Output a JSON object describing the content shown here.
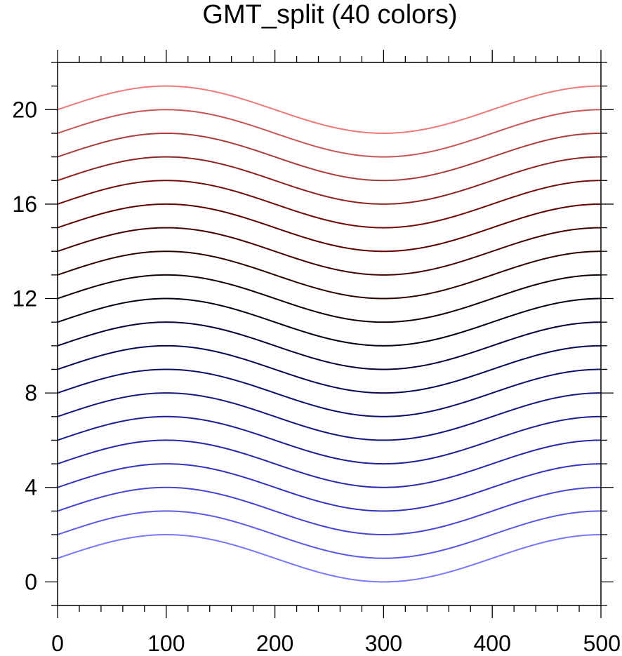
{
  "chart_data": {
    "type": "line",
    "title": "GMT_split (40 colors)",
    "xlabel": "",
    "ylabel": "",
    "xlim": [
      0,
      500
    ],
    "ylim": [
      -1,
      22
    ],
    "x_ticks": [
      0,
      100,
      200,
      300,
      400,
      500
    ],
    "y_ticks": [
      0,
      4,
      8,
      12,
      16,
      20
    ],
    "x_minor_step": 20,
    "y_minor_step": 1,
    "grid": false,
    "legend": "none",
    "curve": "y = offset + sin(pi * x / 200)",
    "x": [
      0,
      25,
      50,
      75,
      100,
      125,
      150,
      175,
      200,
      225,
      250,
      275,
      300,
      325,
      350,
      375,
      400,
      425,
      450,
      475,
      500
    ],
    "series": [
      {
        "offset": 1,
        "color": "#7777ff"
      },
      {
        "offset": 2,
        "color": "#5a5ae8"
      },
      {
        "offset": 3,
        "color": "#4444d6"
      },
      {
        "offset": 4,
        "color": "#3333c2"
      },
      {
        "offset": 5,
        "color": "#2828aa"
      },
      {
        "offset": 6,
        "color": "#1e1e94"
      },
      {
        "offset": 7,
        "color": "#15157f"
      },
      {
        "offset": 8,
        "color": "#0e0e6a"
      },
      {
        "offset": 9,
        "color": "#080855"
      },
      {
        "offset": 10,
        "color": "#040438"
      },
      {
        "offset": 11,
        "color": "#000012"
      },
      {
        "offset": 12,
        "color": "#120000"
      },
      {
        "offset": 13,
        "color": "#2e0000"
      },
      {
        "offset": 14,
        "color": "#450000"
      },
      {
        "offset": 15,
        "color": "#5c0000"
      },
      {
        "offset": 16,
        "color": "#720a0a"
      },
      {
        "offset": 17,
        "color": "#8e2222"
      },
      {
        "offset": 18,
        "color": "#aa3c3c"
      },
      {
        "offset": 19,
        "color": "#c85656"
      },
      {
        "offset": 20,
        "color": "#f07878"
      }
    ]
  }
}
